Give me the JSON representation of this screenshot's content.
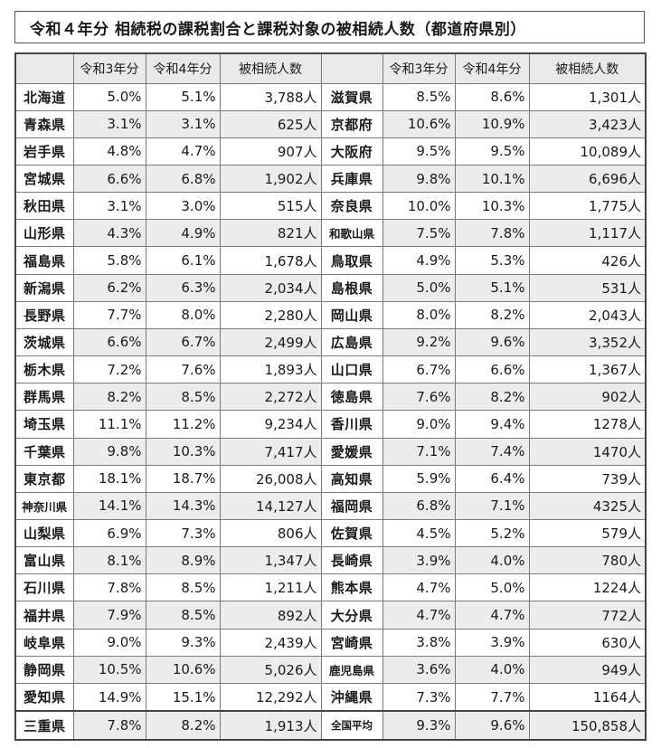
{
  "title": "令和４年分 相続税の課税割合と課税対象の被相続人数（都道府県別）",
  "headers": [
    "",
    "令和3年分",
    "令和4年分",
    "被相続人数",
    "",
    "令和3年分",
    "令和4年分",
    "被相続人数"
  ],
  "rows": [
    {
      "left": [
        "北海道",
        "5.0%",
        "5.1%",
        "3,788人"
      ],
      "right": [
        "滋賀県",
        "8.5%",
        "8.6%",
        "1,301人"
      ]
    },
    {
      "left": [
        "青森県",
        "3.1%",
        "3.1%",
        "625人"
      ],
      "right": [
        "京都府",
        "10.6%",
        "10.9%",
        "3,423人"
      ]
    },
    {
      "left": [
        "岩手県",
        "4.8%",
        "4.7%",
        "907人"
      ],
      "right": [
        "大阪府",
        "9.5%",
        "9.5%",
        "10,089人"
      ]
    },
    {
      "left": [
        "宮城県",
        "6.6%",
        "6.8%",
        "1,902人"
      ],
      "right": [
        "兵庫県",
        "9.8%",
        "10.1%",
        "6,696人"
      ]
    },
    {
      "left": [
        "秋田県",
        "3.1%",
        "3.0%",
        "515人"
      ],
      "right": [
        "奈良県",
        "10.0%",
        "10.3%",
        "1,775人"
      ]
    },
    {
      "left": [
        "山形県",
        "4.3%",
        "4.9%",
        "821人"
      ],
      "right": [
        "和歌山県",
        "7.5%",
        "7.8%",
        "1,117人"
      ]
    },
    {
      "left": [
        "福島県",
        "5.8%",
        "6.1%",
        "1,678人"
      ],
      "right": [
        "鳥取県",
        "4.9%",
        "5.3%",
        "426人"
      ]
    },
    {
      "left": [
        "新潟県",
        "6.2%",
        "6.3%",
        "2,034人"
      ],
      "right": [
        "島根県",
        "5.0%",
        "5.1%",
        "531人"
      ]
    },
    {
      "left": [
        "長野県",
        "7.7%",
        "8.0%",
        "2,280人"
      ],
      "right": [
        "岡山県",
        "8.0%",
        "8.2%",
        "2,043人"
      ]
    },
    {
      "left": [
        "茨城県",
        "6.6%",
        "6.7%",
        "2,499人"
      ],
      "right": [
        "広島県",
        "9.2%",
        "9.6%",
        "3,352人"
      ]
    },
    {
      "left": [
        "栃木県",
        "7.2%",
        "7.6%",
        "1,893人"
      ],
      "right": [
        "山口県",
        "6.7%",
        "6.6%",
        "1,367人"
      ]
    },
    {
      "left": [
        "群馬県",
        "8.2%",
        "8.5%",
        "2,272人"
      ],
      "right": [
        "徳島県",
        "7.6%",
        "8.2%",
        "902人"
      ]
    },
    {
      "left": [
        "埼玉県",
        "11.1%",
        "11.2%",
        "9,234人"
      ],
      "right": [
        "香川県",
        "9.0%",
        "9.4%",
        "1278人"
      ]
    },
    {
      "left": [
        "千葉県",
        "9.8%",
        "10.3%",
        "7,417人"
      ],
      "right": [
        "愛媛県",
        "7.1%",
        "7.4%",
        "1470人"
      ]
    },
    {
      "left": [
        "東京都",
        "18.1%",
        "18.7%",
        "26,008人"
      ],
      "right": [
        "高知県",
        "5.9%",
        "6.4%",
        "739人"
      ]
    },
    {
      "left": [
        "神奈川県",
        "14.1%",
        "14.3%",
        "14,127人"
      ],
      "right": [
        "福岡県",
        "6.8%",
        "7.1%",
        "4325人"
      ]
    },
    {
      "left": [
        "山梨県",
        "6.9%",
        "7.3%",
        "806人"
      ],
      "right": [
        "佐賀県",
        "4.5%",
        "5.2%",
        "579人"
      ]
    },
    {
      "left": [
        "富山県",
        "8.1%",
        "8.9%",
        "1,347人"
      ],
      "right": [
        "長崎県",
        "3.9%",
        "4.0%",
        "780人"
      ]
    },
    {
      "left": [
        "石川県",
        "7.8%",
        "8.5%",
        "1,211人"
      ],
      "right": [
        "熊本県",
        "4.7%",
        "5.0%",
        "1224人"
      ]
    },
    {
      "left": [
        "福井県",
        "7.9%",
        "8.5%",
        "892人"
      ],
      "right": [
        "大分県",
        "4.7%",
        "4.7%",
        "772人"
      ]
    },
    {
      "left": [
        "岐阜県",
        "9.0%",
        "9.3%",
        "2,439人"
      ],
      "right": [
        "宮崎県",
        "3.8%",
        "3.9%",
        "630人"
      ]
    },
    {
      "left": [
        "静岡県",
        "10.5%",
        "10.6%",
        "5,026人"
      ],
      "right": [
        "鹿児島県",
        "3.6%",
        "4.0%",
        "949人"
      ]
    },
    {
      "left": [
        "愛知県",
        "14.9%",
        "15.1%",
        "12,292人"
      ],
      "right": [
        "沖縄県",
        "7.3%",
        "7.7%",
        "1164人"
      ]
    },
    {
      "left": [
        "三重県",
        "7.8%",
        "8.2%",
        "1,913人"
      ],
      "right": [
        "全国平均",
        "9.3%",
        "9.6%",
        "150,858人"
      ]
    }
  ]
}
